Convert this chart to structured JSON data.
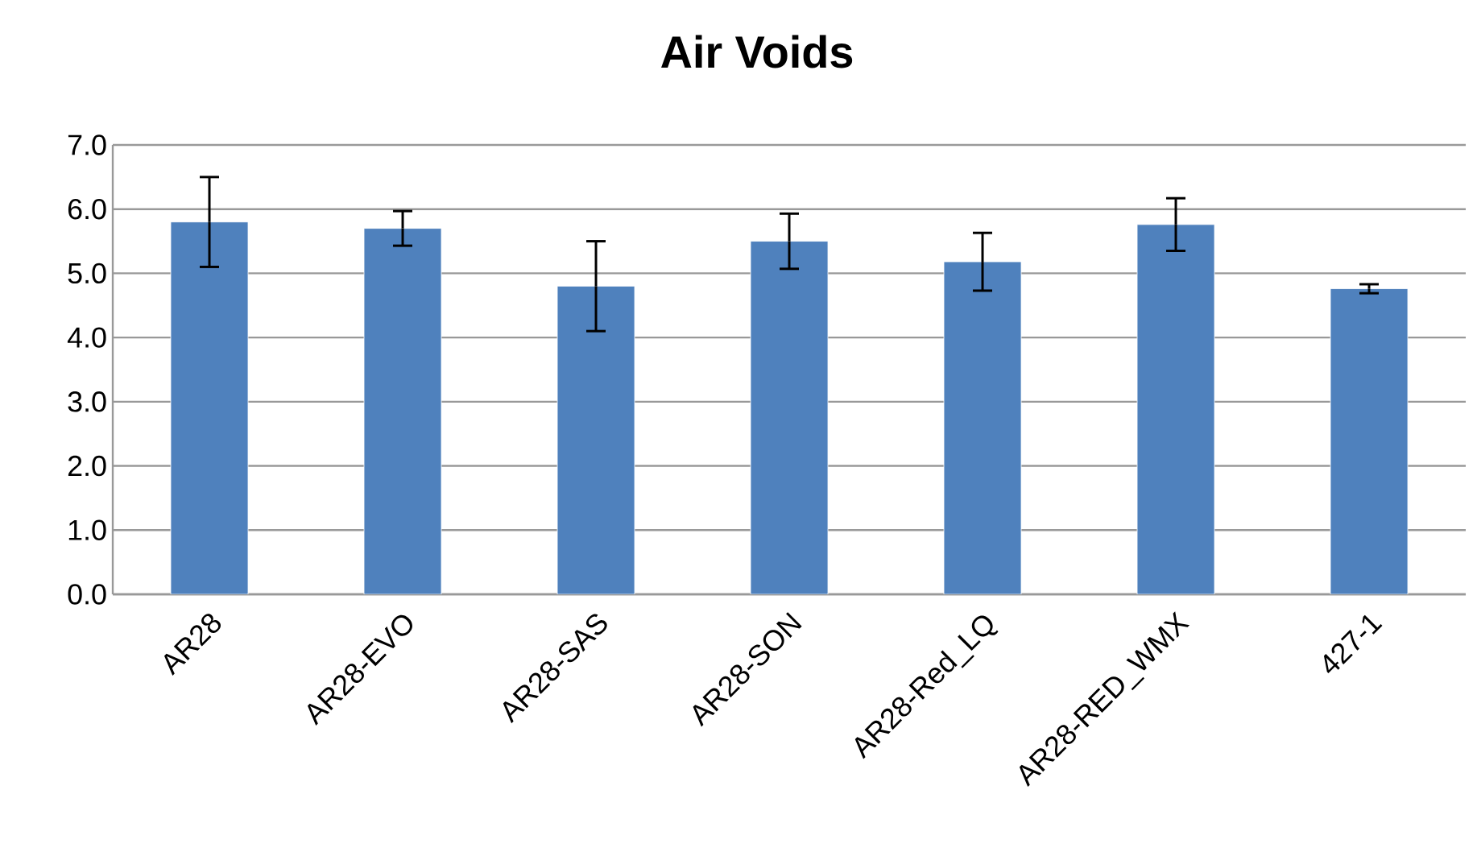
{
  "chart_data": {
    "type": "bar",
    "title": "Air Voids",
    "categories": [
      "AR28",
      "AR28-EVO",
      "AR28-SAS",
      "AR28-SON",
      "AR28-Red_LQ",
      "AR28-RED_WMX",
      "427-1"
    ],
    "values": [
      5.8,
      5.7,
      4.8,
      5.5,
      5.18,
      5.76,
      4.76
    ],
    "errors": [
      0.7,
      0.27,
      0.7,
      0.43,
      0.45,
      0.41,
      0.07
    ],
    "color": "#4f81bd",
    "ylim": [
      0,
      7
    ],
    "yticks": [
      {
        "value": 0,
        "label": "0.0"
      },
      {
        "value": 1,
        "label": "1.0"
      },
      {
        "value": 2,
        "label": "2.0"
      },
      {
        "value": 3,
        "label": "3.0"
      },
      {
        "value": 4,
        "label": "4.0"
      },
      {
        "value": 5,
        "label": "5.0"
      },
      {
        "value": 6,
        "label": "6.0"
      },
      {
        "value": 7,
        "label": "7.0"
      }
    ],
    "grid": "y"
  }
}
